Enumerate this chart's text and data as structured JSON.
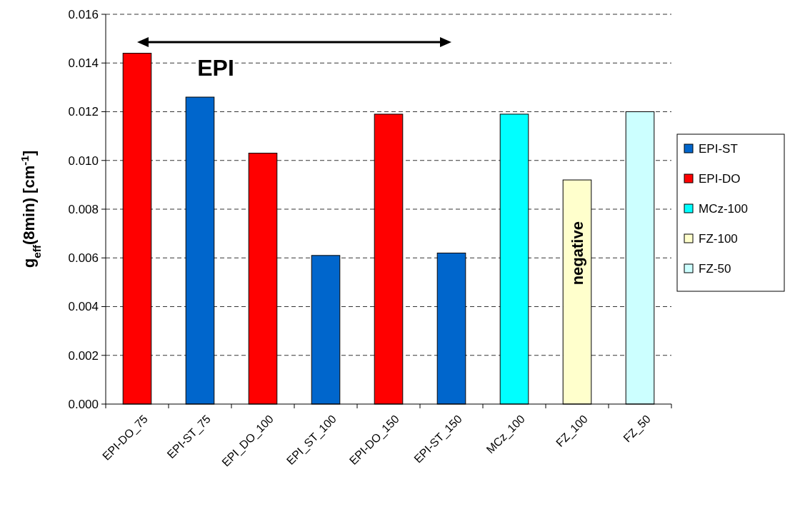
{
  "chart_data": {
    "type": "bar",
    "ylabel": "g$_{eff}$(8min) [cm$^{-1}$]",
    "categories": [
      "EPI-DO_75",
      "EPI-ST_75",
      "EPI_DO_100",
      "EPI_ST_100",
      "EPI-DO_150",
      "EPI-ST_150",
      "MCz_100",
      "FZ_100",
      "FZ_50"
    ],
    "series": [
      {
        "name": "EPI-ST",
        "color": "#0066cc",
        "values": [
          null,
          0.0126,
          null,
          0.0061,
          null,
          0.0062,
          null,
          null,
          null
        ]
      },
      {
        "name": "EPI-DO",
        "color": "#ff0000",
        "values": [
          0.0144,
          null,
          0.0103,
          null,
          0.0119,
          null,
          null,
          null,
          null
        ]
      },
      {
        "name": "MCz-100",
        "color": "#00ffff",
        "values": [
          null,
          null,
          null,
          null,
          null,
          null,
          0.0119,
          null,
          null
        ]
      },
      {
        "name": "FZ-100",
        "color": "#ffffcc",
        "values": [
          null,
          null,
          null,
          null,
          null,
          null,
          null,
          0.0092,
          null
        ]
      },
      {
        "name": "FZ-50",
        "color": "#ccffff",
        "values": [
          null,
          null,
          null,
          null,
          null,
          null,
          null,
          null,
          0.012
        ]
      }
    ],
    "ylim": [
      0,
      0.016
    ],
    "yticks": [
      {
        "value": 0,
        "label": "0.000"
      },
      {
        "value": 0.002,
        "label": "0.002"
      },
      {
        "value": 0.004,
        "label": "0.004"
      },
      {
        "value": 0.006,
        "label": "0.006"
      },
      {
        "value": 0.008,
        "label": "0.008"
      },
      {
        "value": 0.01,
        "label": "0.010"
      },
      {
        "value": 0.012,
        "label": "0.012"
      },
      {
        "value": 0.014,
        "label": "0.014"
      },
      {
        "value": 0.016,
        "label": "0.016"
      }
    ],
    "grid": "y",
    "legend": "right",
    "annotations": [
      "EPI",
      "negative"
    ]
  }
}
